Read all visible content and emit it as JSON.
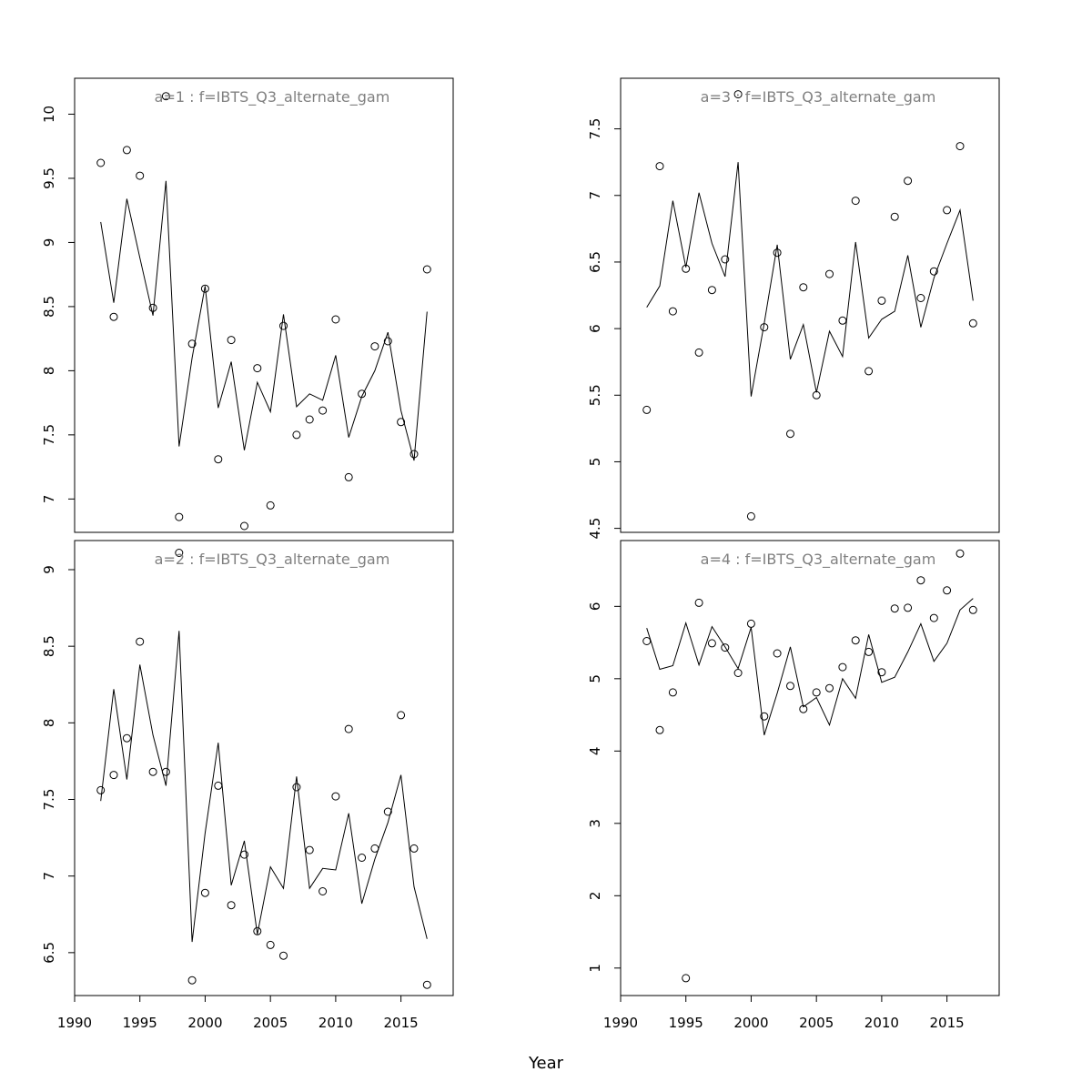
{
  "xlabel": "Year",
  "colors": {
    "line": "#000000",
    "points": "#000000",
    "title": "#808080",
    "frame": "#000000"
  },
  "chart_data": [
    {
      "type": "line",
      "title": "a=1  :  f=IBTS_Q3_alternate_gam",
      "xlabel": "Year",
      "ylabel": "",
      "xlim": [
        1990,
        2019
      ],
      "ylim": [
        6.74,
        10.28
      ],
      "yticks": [
        7.0,
        7.5,
        8.0,
        8.5,
        9.0,
        9.5,
        10.0
      ],
      "xticks": [],
      "series": [
        {
          "style": "points",
          "x": [
            1992,
            1993,
            1994,
            1995,
            1996,
            1997,
            1998,
            1999,
            2000,
            2001,
            2002,
            2003,
            2004,
            2005,
            2006,
            2007,
            2008,
            2009,
            2010,
            2011,
            2012,
            2013,
            2014,
            2015,
            2016,
            2017
          ],
          "y": [
            9.62,
            8.42,
            9.72,
            9.52,
            8.49,
            10.14,
            6.86,
            8.21,
            8.64,
            7.31,
            8.24,
            6.79,
            8.02,
            6.95,
            8.35,
            7.5,
            7.62,
            7.69,
            8.4,
            7.17,
            7.82,
            8.19,
            8.23,
            7.6,
            7.35,
            8.79
          ]
        },
        {
          "style": "line",
          "x": [
            1992,
            1993,
            1994,
            1995,
            1996,
            1997,
            1998,
            1999,
            2000,
            2001,
            2002,
            2003,
            2004,
            2005,
            2006,
            2007,
            2008,
            2009,
            2010,
            2011,
            2012,
            2013,
            2014,
            2015,
            2016,
            2017
          ],
          "y": [
            9.16,
            8.53,
            9.34,
            8.88,
            8.43,
            9.48,
            7.41,
            8.1,
            8.66,
            7.71,
            8.07,
            7.38,
            7.91,
            7.68,
            8.44,
            7.72,
            7.82,
            7.77,
            8.12,
            7.48,
            7.8,
            8.0,
            8.3,
            7.69,
            7.3,
            8.46
          ]
        }
      ]
    },
    {
      "type": "line",
      "title": "a=3  :  f=IBTS_Q3_alternate_gam",
      "xlabel": "Year",
      "ylabel": "",
      "xlim": [
        1990,
        2019
      ],
      "ylim": [
        4.47,
        7.88
      ],
      "yticks": [
        4.5,
        5.0,
        5.5,
        6.0,
        6.5,
        7.0,
        7.5
      ],
      "xticks": [],
      "series": [
        {
          "style": "points",
          "x": [
            1992,
            1993,
            1994,
            1995,
            1996,
            1997,
            1998,
            1999,
            2000,
            2001,
            2002,
            2003,
            2004,
            2005,
            2006,
            2007,
            2008,
            2009,
            2010,
            2011,
            2012,
            2013,
            2014,
            2015,
            2016,
            2017
          ],
          "y": [
            5.39,
            7.22,
            6.13,
            6.45,
            5.82,
            6.29,
            6.52,
            7.76,
            4.59,
            6.01,
            6.57,
            5.21,
            6.31,
            5.5,
            6.41,
            6.06,
            6.96,
            5.68,
            6.21,
            6.84,
            7.11,
            6.23,
            6.43,
            6.89,
            7.37,
            6.04
          ]
        },
        {
          "style": "line",
          "x": [
            1992,
            1993,
            1994,
            1995,
            1996,
            1997,
            1998,
            1999,
            2000,
            2001,
            2002,
            2003,
            2004,
            2005,
            2006,
            2007,
            2008,
            2009,
            2010,
            2011,
            2012,
            2013,
            2014,
            2015,
            2016,
            2017
          ],
          "y": [
            6.16,
            6.32,
            6.96,
            6.46,
            7.02,
            6.64,
            6.39,
            7.25,
            5.49,
            6.04,
            6.63,
            5.77,
            6.03,
            5.52,
            5.98,
            5.79,
            6.65,
            5.93,
            6.07,
            6.13,
            6.55,
            6.01,
            6.38,
            6.64,
            6.89,
            6.21
          ]
        }
      ]
    },
    {
      "type": "line",
      "title": "a=2  :  f=IBTS_Q3_alternate_gam",
      "xlabel": "Year",
      "ylabel": "",
      "xlim": [
        1990,
        2019
      ],
      "ylim": [
        6.22,
        9.19
      ],
      "yticks": [
        6.5,
        7.0,
        7.5,
        8.0,
        8.5,
        9.0
      ],
      "xticks": [
        1990,
        1995,
        2000,
        2005,
        2010,
        2015
      ],
      "series": [
        {
          "style": "points",
          "x": [
            1992,
            1993,
            1994,
            1995,
            1996,
            1997,
            1998,
            1999,
            2000,
            2001,
            2002,
            2003,
            2004,
            2005,
            2006,
            2007,
            2008,
            2009,
            2010,
            2011,
            2012,
            2013,
            2014,
            2015,
            2016,
            2017
          ],
          "y": [
            7.56,
            7.66,
            7.9,
            8.53,
            7.68,
            7.68,
            9.11,
            6.32,
            6.89,
            7.59,
            6.81,
            7.14,
            6.64,
            6.55,
            6.48,
            7.58,
            7.17,
            6.9,
            7.52,
            7.96,
            7.12,
            7.18,
            7.42,
            8.05,
            7.18,
            6.29
          ]
        },
        {
          "style": "line",
          "x": [
            1992,
            1993,
            1994,
            1995,
            1996,
            1997,
            1998,
            1999,
            2000,
            2001,
            2002,
            2003,
            2004,
            2005,
            2006,
            2007,
            2008,
            2009,
            2010,
            2011,
            2012,
            2013,
            2014,
            2015,
            2016,
            2017
          ],
          "y": [
            7.49,
            8.22,
            7.63,
            8.38,
            7.92,
            7.59,
            8.6,
            6.57,
            7.28,
            7.87,
            6.94,
            7.23,
            6.62,
            7.06,
            6.92,
            7.65,
            6.92,
            7.05,
            7.04,
            7.41,
            6.82,
            7.11,
            7.35,
            7.66,
            6.93,
            6.59
          ]
        }
      ]
    },
    {
      "type": "line",
      "title": "a=4  :  f=IBTS_Q3_alternate_gam",
      "xlabel": "Year",
      "ylabel": "",
      "xlim": [
        1990,
        2019
      ],
      "ylim": [
        0.62,
        6.91
      ],
      "yticks": [
        1,
        2,
        3,
        4,
        5,
        6
      ],
      "xticks": [
        1990,
        1995,
        2000,
        2005,
        2010,
        2015
      ],
      "series": [
        {
          "style": "points",
          "x": [
            1992,
            1993,
            1994,
            1995,
            1996,
            1997,
            1998,
            1999,
            2000,
            2001,
            2002,
            2003,
            2004,
            2005,
            2006,
            2007,
            2008,
            2009,
            2010,
            2011,
            2012,
            2013,
            2014,
            2015,
            2016,
            2017
          ],
          "y": [
            5.52,
            4.29,
            4.81,
            0.86,
            6.05,
            5.49,
            5.43,
            5.08,
            5.76,
            4.48,
            5.35,
            4.9,
            4.58,
            4.81,
            4.87,
            5.16,
            5.53,
            5.37,
            5.09,
            5.97,
            5.98,
            6.36,
            5.84,
            6.22,
            6.73,
            5.95
          ]
        },
        {
          "style": "line",
          "x": [
            1992,
            1993,
            1994,
            1995,
            1996,
            1997,
            1998,
            1999,
            2000,
            2001,
            2002,
            2003,
            2004,
            2005,
            2006,
            2007,
            2008,
            2009,
            2010,
            2011,
            2012,
            2013,
            2014,
            2015,
            2016,
            2017
          ],
          "y": [
            5.7,
            5.13,
            5.18,
            5.77,
            5.19,
            5.72,
            5.44,
            5.14,
            5.71,
            4.22,
            4.8,
            5.44,
            4.61,
            4.74,
            4.36,
            5.0,
            4.73,
            5.61,
            4.95,
            5.02,
            5.37,
            5.76,
            5.24,
            5.49,
            5.95,
            6.11
          ]
        }
      ]
    }
  ]
}
